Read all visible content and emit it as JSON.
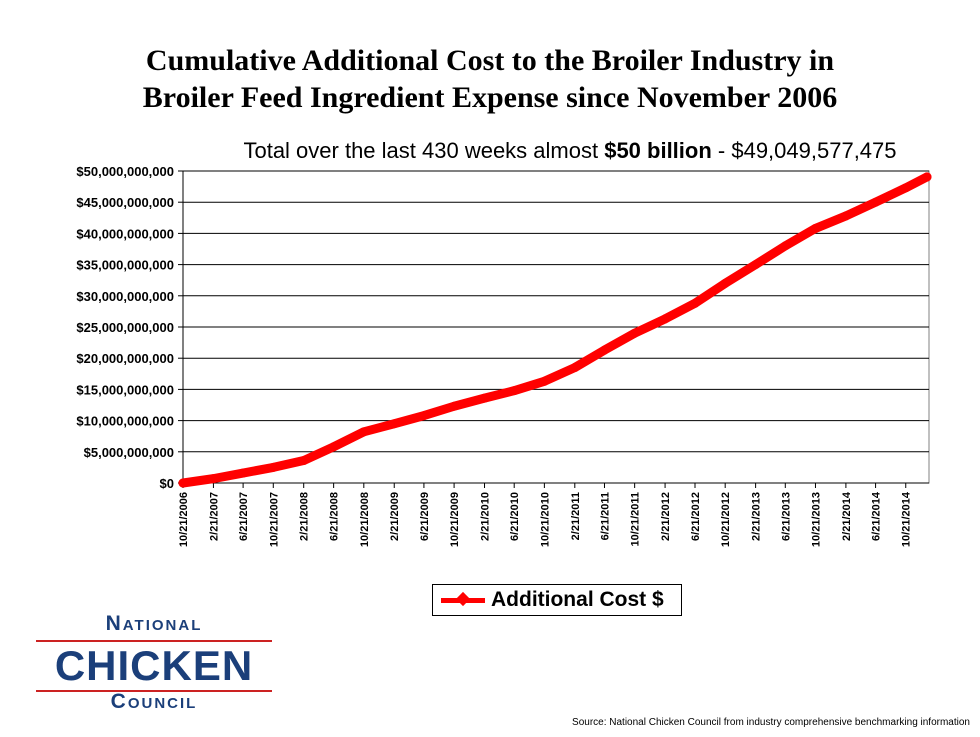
{
  "title_line1": "Cumulative Additional Cost to the Broiler Industry in",
  "title_line2": "Broiler Feed Ingredient Expense since November 2006",
  "subtitle": {
    "prefix": "Total over the last 430 weeks almost ",
    "bold": "$50 billion",
    "suffix": " - $49,049,577,475"
  },
  "logo": {
    "top": "National",
    "middle": "CHICKEN",
    "bottom": "Council"
  },
  "source": "Source: National Chicken Council from industry comprehensive benchmarking information",
  "chart_data": {
    "type": "line",
    "x_tick_labels": [
      "10/21/2006",
      "2/21/2007",
      "6/21/2007",
      "10/21/2007",
      "2/21/2008",
      "6/21/2008",
      "10/21/2008",
      "2/21/2009",
      "6/21/2009",
      "10/21/2009",
      "2/21/2010",
      "6/21/2010",
      "10/21/2010",
      "2/21/2011",
      "6/21/2011",
      "10/21/2011",
      "2/21/2012",
      "6/21/2012",
      "10/21/2012",
      "2/21/2013",
      "6/21/2013",
      "10/21/2013",
      "2/21/2014",
      "6/21/2014",
      "10/21/2014"
    ],
    "y_tick_labels": [
      "$0",
      "$5,000,000,000",
      "$10,000,000,000",
      "$15,000,000,000",
      "$20,000,000,000",
      "$25,000,000,000",
      "$30,000,000,000",
      "$35,000,000,000",
      "$40,000,000,000",
      "$45,000,000,000",
      "$50,000,000,000"
    ],
    "ylim": [
      0,
      50000000000
    ],
    "grid": true,
    "legend_position": "bottom-center",
    "series": [
      {
        "name": "Additional Cost $",
        "color": "#ff0000",
        "x": [
          "10/21/2006",
          "2/21/2007",
          "6/21/2007",
          "10/21/2007",
          "2/21/2008",
          "6/21/2008",
          "10/21/2008",
          "2/21/2009",
          "6/21/2009",
          "10/21/2009",
          "2/21/2010",
          "6/21/2010",
          "10/21/2010",
          "2/21/2011",
          "6/21/2011",
          "10/21/2011",
          "2/21/2012",
          "6/21/2012",
          "10/21/2012",
          "2/21/2013",
          "6/21/2013",
          "10/21/2013",
          "2/21/2014",
          "6/21/2014",
          "10/21/2014",
          "1/15/2015"
        ],
        "values": [
          0,
          700000000,
          1600000000,
          2500000000,
          3600000000,
          5800000000,
          8200000000,
          9500000000,
          10800000000,
          12300000000,
          13600000000,
          14800000000,
          16300000000,
          18500000000,
          21300000000,
          24000000000,
          26300000000,
          28800000000,
          32000000000,
          35000000000,
          38000000000,
          40800000000,
          42800000000,
          45000000000,
          47300000000,
          49049577475
        ]
      }
    ]
  }
}
